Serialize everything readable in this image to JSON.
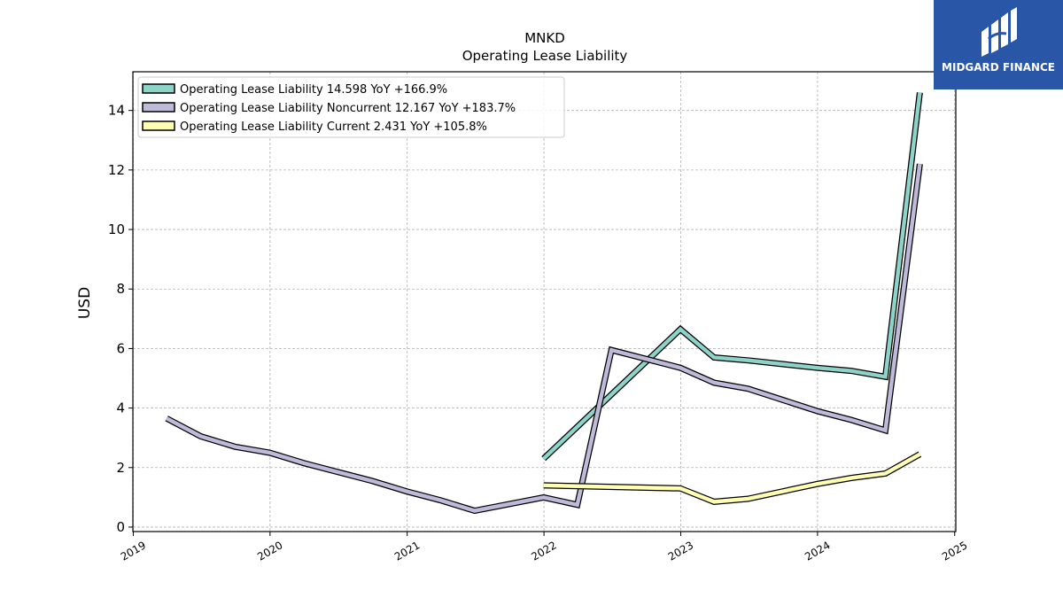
{
  "chart_data": {
    "type": "line",
    "title": "MNKD",
    "subtitle": "Operating Lease Liability",
    "ylabel": "USD",
    "xlabel": "",
    "x_ticks": [
      "2019",
      "2020",
      "2021",
      "2022",
      "2023",
      "2024",
      "2025"
    ],
    "y_ticks": [
      "0",
      "2",
      "4",
      "6",
      "8",
      "10",
      "12",
      "14"
    ],
    "xlim": [
      "2018-12-31",
      "2025-01-04"
    ],
    "ylim": [
      -0.15,
      15.3
    ],
    "grid": true,
    "legend_position": "top-left",
    "series": [
      {
        "name": "Operating Lease Liability  14.598 YoY +166.9%",
        "color": "#8dd3c7",
        "points": [
          [
            "2021-12-31",
            2.3
          ],
          [
            "2022-12-31",
            6.65
          ],
          [
            "2023-03-31",
            5.7
          ],
          [
            "2023-06-30",
            5.6
          ],
          [
            "2023-12-31",
            5.35
          ],
          [
            "2024-03-31",
            5.25
          ],
          [
            "2024-06-30",
            5.05
          ],
          [
            "2024-09-30",
            14.6
          ]
        ]
      },
      {
        "name": "Operating Lease Liability Noncurrent  12.167 YoY +183.7%",
        "color": "#bebada",
        "points": [
          [
            "2019-03-31",
            3.65
          ],
          [
            "2019-06-30",
            3.05
          ],
          [
            "2019-09-30",
            2.7
          ],
          [
            "2019-12-31",
            2.5
          ],
          [
            "2020-03-31",
            2.15
          ],
          [
            "2020-06-30",
            1.85
          ],
          [
            "2020-09-30",
            1.55
          ],
          [
            "2020-12-31",
            1.2
          ],
          [
            "2021-03-31",
            0.9
          ],
          [
            "2021-06-30",
            0.55
          ],
          [
            "2021-12-31",
            1.0
          ],
          [
            "2022-03-31",
            0.75
          ],
          [
            "2022-06-30",
            5.95
          ],
          [
            "2022-12-31",
            5.35
          ],
          [
            "2023-03-31",
            4.85
          ],
          [
            "2023-06-30",
            4.65
          ],
          [
            "2023-12-31",
            3.9
          ],
          [
            "2024-03-31",
            3.6
          ],
          [
            "2024-06-30",
            3.25
          ],
          [
            "2024-09-30",
            12.2
          ]
        ]
      },
      {
        "name": "Operating Lease Liability Current  2.431 YoY +105.8%",
        "color": "#ffffb3",
        "points": [
          [
            "2021-12-31",
            1.4
          ],
          [
            "2022-12-31",
            1.3
          ],
          [
            "2023-03-31",
            0.85
          ],
          [
            "2023-06-30",
            0.95
          ],
          [
            "2023-12-31",
            1.45
          ],
          [
            "2024-03-31",
            1.65
          ],
          [
            "2024-06-30",
            1.8
          ],
          [
            "2024-09-30",
            2.45
          ]
        ]
      }
    ]
  },
  "logo": {
    "text": "MIDGARD FINANCE",
    "color": "#2a56a8"
  }
}
